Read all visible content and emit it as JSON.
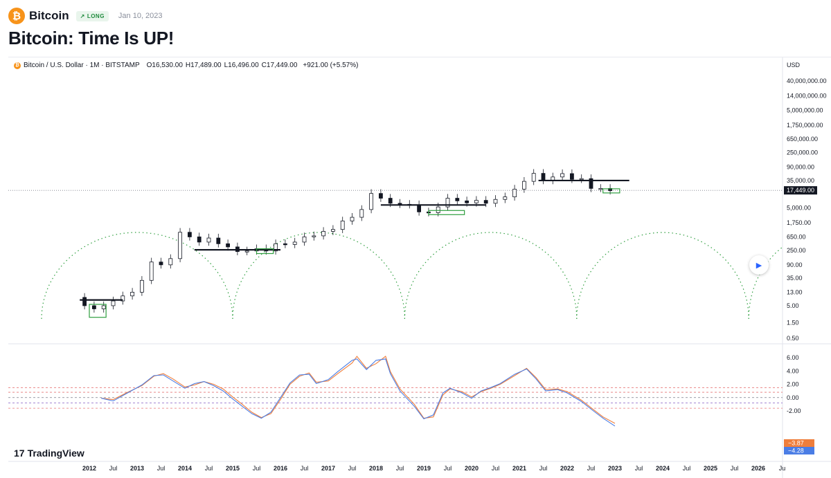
{
  "header": {
    "coin_glyph": "₿",
    "symbol": "Bitcoin",
    "badge_arrow": "↗",
    "badge": "LONG",
    "date": "Jan 10, 2023",
    "title": "Bitcoin: Time Is UP!"
  },
  "legend": {
    "dot": "₿",
    "instrument": "Bitcoin / U.S. Dollar · 1M · BITSTAMP",
    "open": "O16,530.00",
    "high": "H17,489.00",
    "low": "L16,496.00",
    "close": "C17,449.00",
    "change": "+921.00 (+5.57%)"
  },
  "branding": {
    "logo_glyph": "17",
    "name": "TradingView"
  },
  "chart_data": [
    {
      "type": "candlestick",
      "scale": "log",
      "currency": "USD",
      "price_axis_labels": [
        "40,000,000.00",
        "14,000,000.00",
        "5,000,000.00",
        "1,750,000.00",
        "650,000.00",
        "250,000.00",
        "90,000.00",
        "35,000.00",
        "17,449.00",
        "5,000.00",
        "1,750.00",
        "650.00",
        "250.00",
        "90.00",
        "35.00",
        "13.00",
        "5.00",
        "1.50",
        "0.50"
      ],
      "price_axis_values": [
        40000000,
        14000000,
        5000000,
        1750000,
        650000,
        250000,
        90000,
        35000,
        17449,
        5000,
        1750,
        650,
        250,
        90,
        35,
        13,
        5,
        1.5,
        0.5
      ],
      "last_price": "17,449.00",
      "last_price_value": 17449,
      "time_axis_labels": [
        "2012",
        "Jul",
        "2013",
        "Jul",
        "2014",
        "Jul",
        "2015",
        "Jul",
        "2016",
        "Jul",
        "2017",
        "Jul",
        "2018",
        "Jul",
        "2019",
        "Jul",
        "2020",
        "Jul",
        "2021",
        "Jul",
        "2022",
        "Jul",
        "2023",
        "Jul",
        "2024",
        "Jul",
        "2025",
        "Jul",
        "2026",
        "Ju"
      ],
      "time_axis_values": [
        2012,
        2012.5,
        2013,
        2013.5,
        2014,
        2014.5,
        2015,
        2015.5,
        2016,
        2016.5,
        2017,
        2017.5,
        2018,
        2018.5,
        2019,
        2019.5,
        2020,
        2020.5,
        2021,
        2021.5,
        2022,
        2022.5,
        2023,
        2023.5,
        2024,
        2024.5,
        2025,
        2025.5,
        2026,
        2026.5
      ],
      "price_path": [
        [
          2011.7,
          9
        ],
        [
          2011.9,
          5
        ],
        [
          2012.1,
          4
        ],
        [
          2012.3,
          5
        ],
        [
          2012.5,
          7
        ],
        [
          2012.7,
          10
        ],
        [
          2012.9,
          13
        ],
        [
          2013.1,
          30
        ],
        [
          2013.3,
          110
        ],
        [
          2013.5,
          90
        ],
        [
          2013.7,
          140
        ],
        [
          2013.9,
          900
        ],
        [
          2014.1,
          650
        ],
        [
          2014.3,
          450
        ],
        [
          2014.5,
          600
        ],
        [
          2014.7,
          400
        ],
        [
          2014.9,
          320
        ],
        [
          2015.1,
          230
        ],
        [
          2015.3,
          240
        ],
        [
          2015.5,
          280
        ],
        [
          2015.7,
          240
        ],
        [
          2015.9,
          400
        ],
        [
          2016.1,
          380
        ],
        [
          2016.3,
          450
        ],
        [
          2016.5,
          650
        ],
        [
          2016.7,
          700
        ],
        [
          2016.9,
          960
        ],
        [
          2017.1,
          1100
        ],
        [
          2017.3,
          2000
        ],
        [
          2017.5,
          2600
        ],
        [
          2017.7,
          4500
        ],
        [
          2017.9,
          14000
        ],
        [
          2018.1,
          10000
        ],
        [
          2018.3,
          7000
        ],
        [
          2018.5,
          6500
        ],
        [
          2018.7,
          6300
        ],
        [
          2018.9,
          3800
        ],
        [
          2019.1,
          3600
        ],
        [
          2019.3,
          5400
        ],
        [
          2019.5,
          10000
        ],
        [
          2019.7,
          8300
        ],
        [
          2019.9,
          7200
        ],
        [
          2020.1,
          8600
        ],
        [
          2020.3,
          7000
        ],
        [
          2020.5,
          9200
        ],
        [
          2020.7,
          11000
        ],
        [
          2020.9,
          19000
        ],
        [
          2021.1,
          33000
        ],
        [
          2021.3,
          58000
        ],
        [
          2021.5,
          35000
        ],
        [
          2021.7,
          45000
        ],
        [
          2021.9,
          57000
        ],
        [
          2022.1,
          38000
        ],
        [
          2022.3,
          40000
        ],
        [
          2022.5,
          20000
        ],
        [
          2022.7,
          20000
        ],
        [
          2022.9,
          17000
        ]
      ],
      "resistance_levels": [
        [
          2011.8,
          2012.7,
          7.5
        ],
        [
          2014.2,
          2016.0,
          260
        ],
        [
          2018.1,
          2020.3,
          6200
        ],
        [
          2021.4,
          2023.3,
          35000
        ]
      ],
      "buy_boxes": [
        [
          2012.0,
          2012.35,
          2.2,
          5.5
        ],
        [
          2015.5,
          2015.85,
          200,
          280
        ],
        [
          2019.85,
          2019.1,
          3300,
          4200
        ],
        [
          2022.75,
          2023.1,
          15500,
          19500
        ]
      ],
      "cycle_arcs": [
        [
          2011.0,
          2015.0
        ],
        [
          2015.0,
          2018.6
        ],
        [
          2018.6,
          2022.2
        ],
        [
          2022.2,
          2025.8
        ],
        [
          2025.8,
          2029.0
        ]
      ]
    },
    {
      "type": "line",
      "title": "",
      "axis_labels": [
        "6.00",
        "4.00",
        "2.00",
        "0.00",
        "-2.00"
      ],
      "axis_values": [
        6,
        4,
        2,
        0,
        -2
      ],
      "guide_levels": [
        1.5,
        0.8,
        0.0,
        -0.8,
        -1.6
      ],
      "last_values": [
        "−3.87",
        "−4.28"
      ],
      "series": [
        {
          "name": "",
          "color": "#ef7e3b",
          "values": [
            [
              2012.25,
              -0.1
            ],
            [
              2012.5,
              -0.3
            ],
            [
              2012.8,
              0.8
            ],
            [
              2013.1,
              1.8
            ],
            [
              2013.35,
              3.2
            ],
            [
              2013.55,
              3.6
            ],
            [
              2013.75,
              2.8
            ],
            [
              2014.0,
              1.6
            ],
            [
              2014.2,
              1.9
            ],
            [
              2014.4,
              2.4
            ],
            [
              2014.6,
              2.0
            ],
            [
              2014.8,
              1.3
            ],
            [
              2015.0,
              0.1
            ],
            [
              2015.2,
              -1.0
            ],
            [
              2015.4,
              -2.2
            ],
            [
              2015.6,
              -3.0
            ],
            [
              2015.8,
              -2.4
            ],
            [
              2016.0,
              -0.3
            ],
            [
              2016.2,
              2.0
            ],
            [
              2016.4,
              3.2
            ],
            [
              2016.6,
              3.7
            ],
            [
              2016.75,
              2.3
            ],
            [
              2017.0,
              2.5
            ],
            [
              2017.2,
              3.6
            ],
            [
              2017.5,
              5.2
            ],
            [
              2017.6,
              6.2
            ],
            [
              2017.8,
              4.4
            ],
            [
              2018.0,
              5.1
            ],
            [
              2018.2,
              6.2
            ],
            [
              2018.3,
              3.9
            ],
            [
              2018.5,
              1.3
            ],
            [
              2018.8,
              -1.0
            ],
            [
              2019.0,
              -3.1
            ],
            [
              2019.2,
              -2.9
            ],
            [
              2019.4,
              0.4
            ],
            [
              2019.55,
              1.3
            ],
            [
              2019.8,
              0.9
            ],
            [
              2020.0,
              0.1
            ],
            [
              2020.2,
              0.9
            ],
            [
              2020.4,
              1.4
            ],
            [
              2020.6,
              2.0
            ],
            [
              2020.9,
              3.3
            ],
            [
              2021.15,
              4.4
            ],
            [
              2021.35,
              3.0
            ],
            [
              2021.55,
              1.2
            ],
            [
              2021.8,
              1.3
            ],
            [
              2022.0,
              0.9
            ],
            [
              2022.3,
              -0.4
            ],
            [
              2022.55,
              -1.8
            ],
            [
              2022.75,
              -2.9
            ],
            [
              2023.0,
              -3.87
            ]
          ]
        },
        {
          "name": "",
          "color": "#4a7de5",
          "values": [
            [
              2012.25,
              -0.1
            ],
            [
              2012.5,
              -0.5
            ],
            [
              2012.8,
              0.7
            ],
            [
              2013.1,
              1.9
            ],
            [
              2013.35,
              3.3
            ],
            [
              2013.55,
              3.4
            ],
            [
              2013.75,
              2.5
            ],
            [
              2014.0,
              1.4
            ],
            [
              2014.2,
              2.1
            ],
            [
              2014.4,
              2.4
            ],
            [
              2014.6,
              1.8
            ],
            [
              2014.8,
              1.0
            ],
            [
              2015.0,
              -0.2
            ],
            [
              2015.2,
              -1.3
            ],
            [
              2015.4,
              -2.4
            ],
            [
              2015.6,
              -3.1
            ],
            [
              2015.8,
              -2.2
            ],
            [
              2016.0,
              0.0
            ],
            [
              2016.2,
              2.2
            ],
            [
              2016.4,
              3.4
            ],
            [
              2016.6,
              3.5
            ],
            [
              2016.75,
              2.1
            ],
            [
              2017.0,
              2.7
            ],
            [
              2017.2,
              3.9
            ],
            [
              2017.5,
              5.6
            ],
            [
              2017.6,
              5.8
            ],
            [
              2017.8,
              4.2
            ],
            [
              2018.0,
              5.6
            ],
            [
              2018.2,
              5.8
            ],
            [
              2018.3,
              3.6
            ],
            [
              2018.5,
              1.0
            ],
            [
              2018.8,
              -1.3
            ],
            [
              2019.0,
              -3.2
            ],
            [
              2019.2,
              -2.6
            ],
            [
              2019.4,
              0.7
            ],
            [
              2019.55,
              1.4
            ],
            [
              2019.8,
              0.7
            ],
            [
              2020.0,
              -0.1
            ],
            [
              2020.2,
              1.0
            ],
            [
              2020.4,
              1.5
            ],
            [
              2020.6,
              2.1
            ],
            [
              2020.9,
              3.5
            ],
            [
              2021.15,
              4.3
            ],
            [
              2021.35,
              2.8
            ],
            [
              2021.55,
              1.0
            ],
            [
              2021.8,
              1.2
            ],
            [
              2022.0,
              0.7
            ],
            [
              2022.3,
              -0.6
            ],
            [
              2022.55,
              -2.0
            ],
            [
              2022.75,
              -3.1
            ],
            [
              2023.0,
              -4.28
            ]
          ]
        }
      ]
    }
  ]
}
